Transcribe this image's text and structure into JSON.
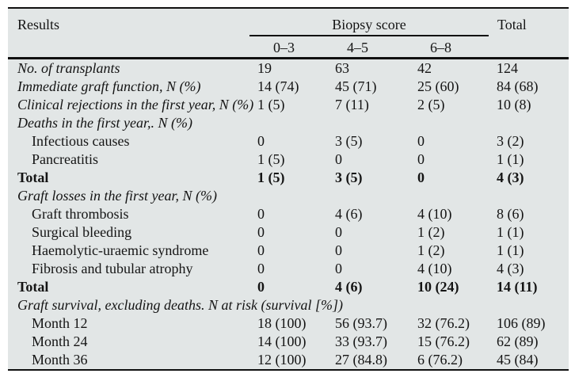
{
  "table": {
    "header": {
      "results_label": "Results",
      "biopsy_score_label": "Biopsy score",
      "total_label": "Total",
      "subcolumns": [
        "0–3",
        "4–5",
        "6–8"
      ],
      "columns": [
        "0–3",
        "4–5",
        "6–8",
        "Total"
      ]
    },
    "rows": [
      {
        "label": "No. of transplants",
        "style": "italic",
        "values": [
          "19",
          "63",
          "42",
          "124"
        ]
      },
      {
        "label": "Immediate graft function, N (%)",
        "style": "italic",
        "values": [
          "14 (74)",
          "45 (71)",
          "25 (60)",
          "84 (68)"
        ]
      },
      {
        "label": "Clinical rejections in the first year, N (%)",
        "style": "italic",
        "values": [
          "1 (5)",
          "7 (11)",
          "2 (5)",
          "10 (8)"
        ]
      },
      {
        "label": "Deaths in the first year,. N (%)",
        "style": "italic",
        "values": [
          "",
          "",
          "",
          ""
        ]
      },
      {
        "label": "Infectious causes",
        "style": "indent",
        "values": [
          "0",
          "3 (5)",
          "0",
          "3 (2)"
        ]
      },
      {
        "label": "Pancreatitis",
        "style": "indent",
        "values": [
          "1 (5)",
          "0",
          "0",
          "1 (1)"
        ]
      },
      {
        "label": "Total",
        "style": "bold",
        "values": [
          "1 (5)",
          "3 (5)",
          "0",
          "4 (3)"
        ]
      },
      {
        "label": "Graft losses in the first year, N (%)",
        "style": "italic",
        "values": [
          "",
          "",
          "",
          ""
        ]
      },
      {
        "label": "Graft thrombosis",
        "style": "indent",
        "values": [
          "0",
          "4 (6)",
          "4 (10)",
          "8 (6)"
        ]
      },
      {
        "label": "Surgical bleeding",
        "style": "indent",
        "values": [
          "0",
          "0",
          "1 (2)",
          "1 (1)"
        ]
      },
      {
        "label": "Haemolytic-uraemic syndrome",
        "style": "indent",
        "values": [
          "0",
          "0",
          "1 (2)",
          "1 (1)"
        ]
      },
      {
        "label": "Fibrosis and tubular atrophy",
        "style": "indent",
        "values": [
          "0",
          "0",
          "4 (10)",
          "4 (3)"
        ]
      },
      {
        "label": "Total",
        "style": "bold",
        "values": [
          "0",
          "4 (6)",
          "10 (24)",
          "14 (11)"
        ]
      },
      {
        "label": "Graft survival, excluding deaths. N at risk (survival [%])",
        "style": "italic",
        "values": [
          "",
          "",
          "",
          ""
        ]
      },
      {
        "label": "Month 12",
        "style": "indent",
        "values": [
          "18 (100)",
          "56 (93.7)",
          "32 (76.2)",
          "106 (89)"
        ]
      },
      {
        "label": "Month 24",
        "style": "indent",
        "values": [
          "14 (100)",
          "33 (93.7)",
          "15 (76.2)",
          "62 (89)"
        ]
      },
      {
        "label": "Month 36",
        "style": "indent",
        "values": [
          "12 (100)",
          "27 (84.8)",
          "6 (76.2)",
          "45 (84)"
        ]
      }
    ],
    "colors": {
      "table_background": "#e2e6e6",
      "rule_color": "#101010",
      "text_color": "#141414"
    }
  }
}
